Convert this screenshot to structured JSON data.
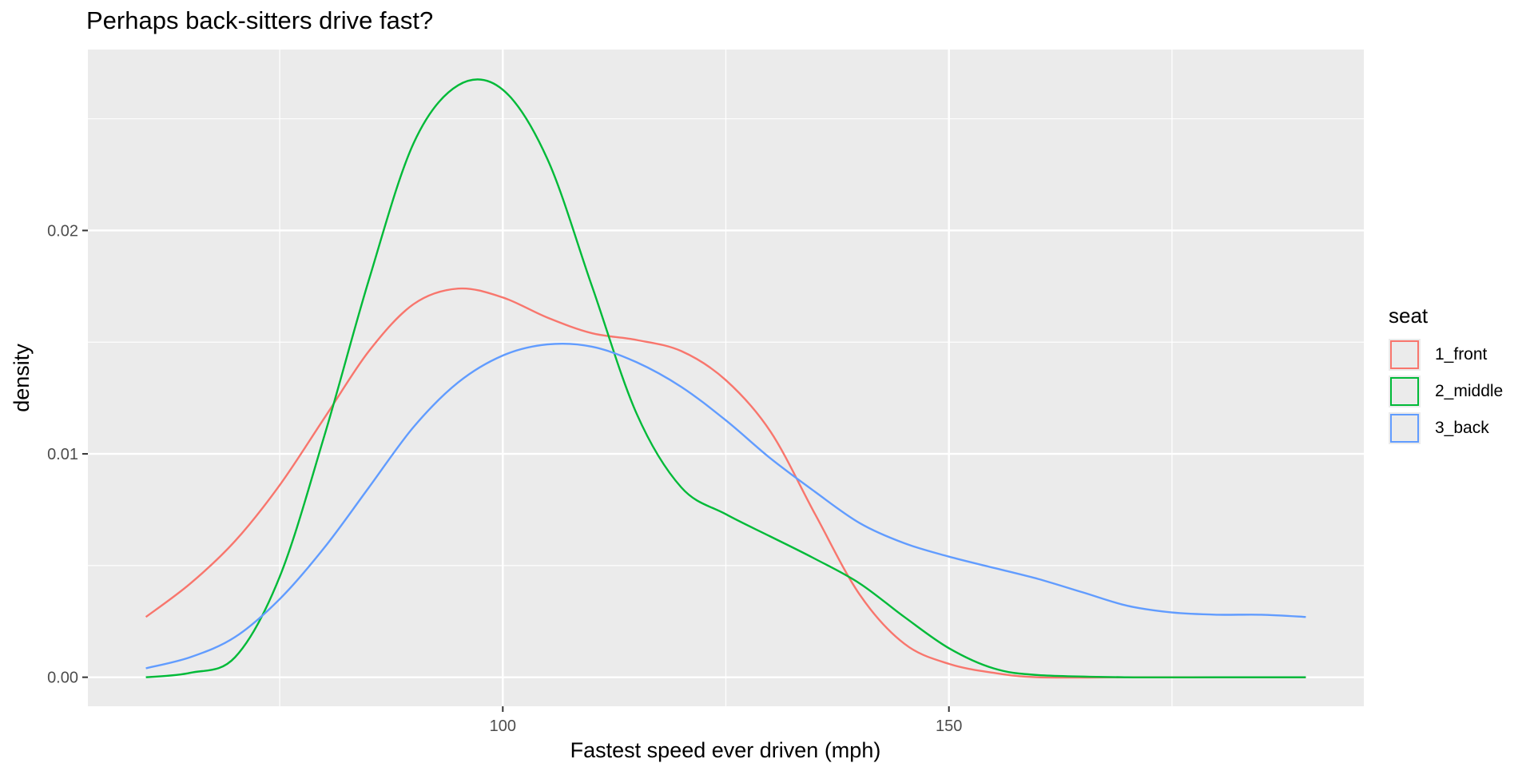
{
  "title": "Perhaps back-sitters drive fast?",
  "chart_data": {
    "type": "line",
    "title": "Perhaps back-sitters drive fast?",
    "xlabel": "Fastest speed ever driven (mph)",
    "ylabel": "density",
    "xlim": [
      53.5,
      196.5
    ],
    "ylim": [
      -0.0013,
      0.0281
    ],
    "x_ticks": [
      100,
      150
    ],
    "y_ticks": [
      0.0,
      0.01,
      0.02
    ],
    "y_tick_labels": [
      "0.00",
      "0.01",
      "0.02"
    ],
    "x_minor_ticks": [
      75,
      125,
      175
    ],
    "y_minor_ticks": [
      0.005,
      0.015,
      0.025
    ],
    "grid": true,
    "legend": {
      "title": "seat",
      "position": "right"
    },
    "series": [
      {
        "name": "1_front",
        "color": "#F8766D",
        "points": [
          [
            60,
            0.0027
          ],
          [
            65,
            0.0042
          ],
          [
            70,
            0.0061
          ],
          [
            75,
            0.0086
          ],
          [
            80,
            0.0116
          ],
          [
            85,
            0.0146
          ],
          [
            90,
            0.0167
          ],
          [
            95,
            0.0174
          ],
          [
            100,
            0.017
          ],
          [
            105,
            0.0161
          ],
          [
            110,
            0.0154
          ],
          [
            115,
            0.0151
          ],
          [
            120,
            0.0146
          ],
          [
            125,
            0.0133
          ],
          [
            130,
            0.011
          ],
          [
            135,
            0.0073
          ],
          [
            140,
            0.0037
          ],
          [
            145,
            0.0015
          ],
          [
            150,
            0.0006
          ],
          [
            155,
            0.0002
          ],
          [
            160,
            0.0
          ],
          [
            170,
            0.0
          ],
          [
            180,
            0.0
          ],
          [
            190,
            0.0
          ]
        ]
      },
      {
        "name": "2_middle",
        "color": "#00BA38",
        "points": [
          [
            60,
            0.0
          ],
          [
            65,
            0.0002
          ],
          [
            70,
            0.0009
          ],
          [
            75,
            0.0045
          ],
          [
            80,
            0.0108
          ],
          [
            85,
            0.0178
          ],
          [
            90,
            0.0239
          ],
          [
            95,
            0.0265
          ],
          [
            100,
            0.0263
          ],
          [
            105,
            0.0232
          ],
          [
            110,
            0.0175
          ],
          [
            115,
            0.0118
          ],
          [
            120,
            0.0085
          ],
          [
            125,
            0.0073
          ],
          [
            130,
            0.0063
          ],
          [
            135,
            0.0053
          ],
          [
            140,
            0.0042
          ],
          [
            145,
            0.0027
          ],
          [
            150,
            0.0013
          ],
          [
            155,
            0.0004
          ],
          [
            160,
            0.0001
          ],
          [
            170,
            0.0
          ],
          [
            180,
            0.0
          ],
          [
            190,
            0.0
          ]
        ]
      },
      {
        "name": "3_back",
        "color": "#619CFF",
        "points": [
          [
            60,
            0.0004
          ],
          [
            65,
            0.0009
          ],
          [
            70,
            0.0018
          ],
          [
            75,
            0.0035
          ],
          [
            80,
            0.0058
          ],
          [
            85,
            0.0085
          ],
          [
            90,
            0.0112
          ],
          [
            95,
            0.0132
          ],
          [
            100,
            0.0144
          ],
          [
            105,
            0.0149
          ],
          [
            110,
            0.0148
          ],
          [
            115,
            0.0141
          ],
          [
            120,
            0.013
          ],
          [
            125,
            0.0115
          ],
          [
            130,
            0.0098
          ],
          [
            135,
            0.0083
          ],
          [
            140,
            0.0069
          ],
          [
            145,
            0.006
          ],
          [
            150,
            0.0054
          ],
          [
            155,
            0.0049
          ],
          [
            160,
            0.0044
          ],
          [
            165,
            0.0038
          ],
          [
            170,
            0.0032
          ],
          [
            175,
            0.0029
          ],
          [
            180,
            0.0028
          ],
          [
            185,
            0.0028
          ],
          [
            190,
            0.0027
          ]
        ]
      }
    ]
  }
}
